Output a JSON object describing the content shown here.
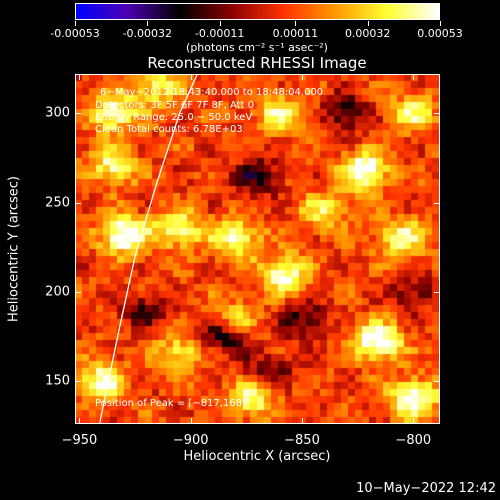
{
  "colorbar": {
    "tick_labels": [
      "-0.00053",
      "-0.00032",
      "-0.00011",
      "0.00011",
      "0.00032",
      "0.00053"
    ],
    "tick_values": [
      -0.00053,
      -0.00032,
      -0.00011,
      0.00011,
      0.00032,
      0.00053
    ],
    "range": [
      -0.00053,
      0.00053
    ],
    "unit": "(photons cm⁻² s⁻¹ asec⁻²)",
    "colors": [
      "#0000ff",
      "#4c00b0",
      "#000000",
      "#8b0000",
      "#ff3300",
      "#ff9900",
      "#ffff33",
      "#ffffff"
    ]
  },
  "chart_data": {
    "type": "heatmap",
    "title": "Reconstructed RHESSI Image",
    "xlabel": "Heliocentric X (arcsec)",
    "ylabel": "Heliocentric Y (arcsec)",
    "xlim": [
      -952,
      -788
    ],
    "ylim": [
      126,
      322
    ],
    "x_ticks": [
      -950,
      -900,
      -850,
      -800
    ],
    "y_ticks": [
      150,
      200,
      250,
      300
    ],
    "x_tick_labels": [
      "−950",
      "−900",
      "−850",
      "−800"
    ],
    "y_tick_labels": [
      "150",
      "200",
      "250",
      "300"
    ],
    "info_lines": [
      "6−May−2012 18:43:40.000 to 18:48:04.000",
      "Detectors: 3F 5F 6F 7F 8F, Att 0",
      "Energy Range: 25.0 − 50.0 keV",
      "Clean     Total counts: 6.78E+03"
    ],
    "peak_text": "Position of Peak = [−817,168]",
    "peak_position": [
      -817,
      168
    ],
    "hot_spots": [
      {
        "x": -930,
        "y": 232,
        "v": 1.0
      },
      {
        "x": -822,
        "y": 268,
        "v": 0.95
      },
      {
        "x": -816,
        "y": 172,
        "v": 1.0
      },
      {
        "x": -880,
        "y": 230,
        "v": 0.75
      },
      {
        "x": -858,
        "y": 210,
        "v": 0.85
      },
      {
        "x": -905,
        "y": 235,
        "v": 0.7
      },
      {
        "x": -935,
        "y": 270,
        "v": 0.7
      },
      {
        "x": -935,
        "y": 300,
        "v": 0.8
      },
      {
        "x": -915,
        "y": 315,
        "v": 0.6
      },
      {
        "x": -940,
        "y": 150,
        "v": 0.75
      },
      {
        "x": -905,
        "y": 165,
        "v": 0.6
      },
      {
        "x": -873,
        "y": 140,
        "v": 0.7
      },
      {
        "x": -800,
        "y": 140,
        "v": 0.95
      },
      {
        "x": -805,
        "y": 230,
        "v": 0.7
      },
      {
        "x": -800,
        "y": 300,
        "v": 0.6
      },
      {
        "x": -860,
        "y": 300,
        "v": 0.65
      },
      {
        "x": -880,
        "y": 185,
        "v": 0.5
      },
      {
        "x": -840,
        "y": 245,
        "v": 0.55
      }
    ],
    "cold_spots": [
      {
        "x": -870,
        "y": 265,
        "v": -0.55
      },
      {
        "x": -885,
        "y": 175,
        "v": -0.6
      },
      {
        "x": -850,
        "y": 185,
        "v": -0.5
      },
      {
        "x": -830,
        "y": 300,
        "v": -0.5
      },
      {
        "x": -920,
        "y": 190,
        "v": -0.45
      },
      {
        "x": -800,
        "y": 200,
        "v": -0.4
      },
      {
        "x": -865,
        "y": 155,
        "v": -0.45
      }
    ],
    "limb_curve": [
      [
        -941,
        126
      ],
      [
        -932,
        180
      ],
      [
        -925,
        220
      ],
      [
        -915,
        262
      ],
      [
        -905,
        300
      ],
      [
        -897,
        322
      ]
    ]
  },
  "footer": {
    "timestamp": "10−May−2022 12:42"
  }
}
